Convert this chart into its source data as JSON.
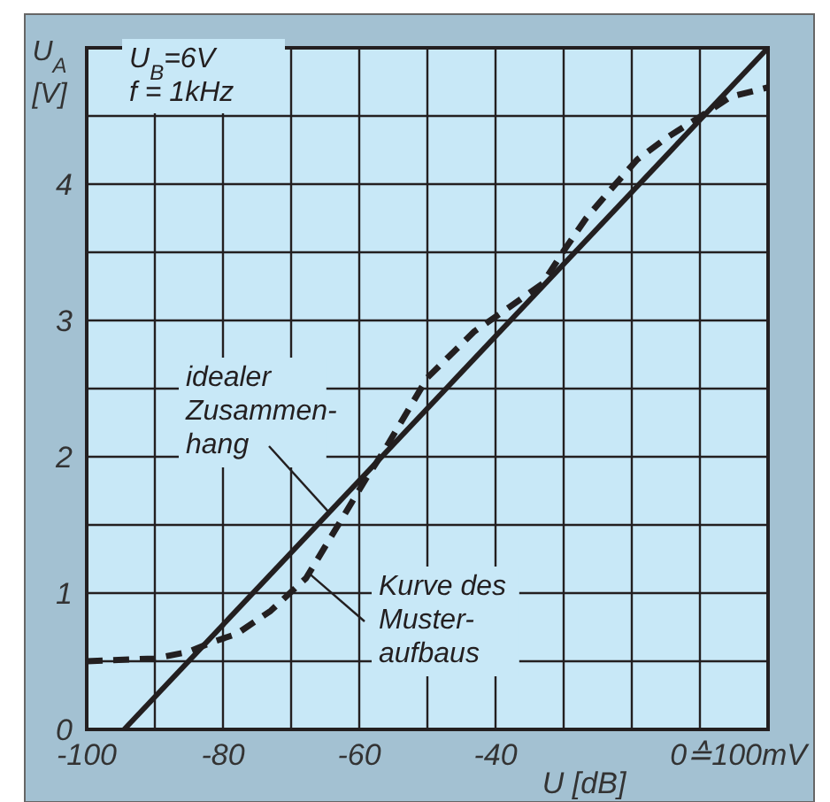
{
  "chart_data": {
    "type": "line",
    "xlabel": "U [dB]",
    "ylabel": "U$_{A}$\n[V]",
    "xlim": [
      -100,
      0
    ],
    "ylim": [
      0,
      5
    ],
    "xticks": [
      -100,
      {
        "value": -90,
        "label": null
      },
      -80,
      {
        "value": -70,
        "label": null
      },
      -60,
      {
        "value": -50,
        "label": null
      },
      -40,
      {
        "value": -30,
        "label": null
      },
      {
        "value": -20,
        "label": null
      },
      {
        "value": -10,
        "label": null
      },
      {
        "value": 0,
        "label": "0≙100mV"
      }
    ],
    "yticks": [
      0,
      {
        "value": 0.5,
        "label": null
      },
      1,
      {
        "value": 1.5,
        "label": null
      },
      2,
      {
        "value": 2.5,
        "label": null
      },
      3,
      {
        "value": 3.5,
        "label": null
      },
      4,
      {
        "value": 4.5,
        "label": null
      },
      {
        "value": 5,
        "label": null
      }
    ],
    "grid": true,
    "series": [
      {
        "color": "#231f20",
        "line_style": "solid",
        "x": [
          -94.5,
          0
        ],
        "values": [
          0,
          5
        ]
      },
      {
        "color": "#231f20",
        "line_style": "dashed",
        "x": [
          -100,
          -90,
          -85,
          -81.6,
          -78,
          -73,
          -67.8,
          -62.6,
          -59,
          -56.4,
          -50,
          -43.1,
          -37.9,
          -33.1,
          -30,
          -26.7,
          -23.1,
          -19.2,
          -14.9,
          -10.1,
          -5.5,
          0
        ],
        "values": [
          0.5,
          0.52,
          0.57,
          0.64,
          0.7,
          0.87,
          1.11,
          1.54,
          1.84,
          2.04,
          2.58,
          2.92,
          3.1,
          3.27,
          3.51,
          3.75,
          3.96,
          4.18,
          4.34,
          4.49,
          4.64,
          4.71
        ]
      }
    ],
    "annotations": [
      "U$_{B}$=6V\nf = 1kHz",
      {
        "text": "idealer\nZusammen-\nhang",
        "x": -64.4,
        "y": 1.59
      },
      {
        "text": "Kurve des\nMuster-\naufbaus",
        "x": -67.5,
        "y": 1.15
      }
    ]
  }
}
